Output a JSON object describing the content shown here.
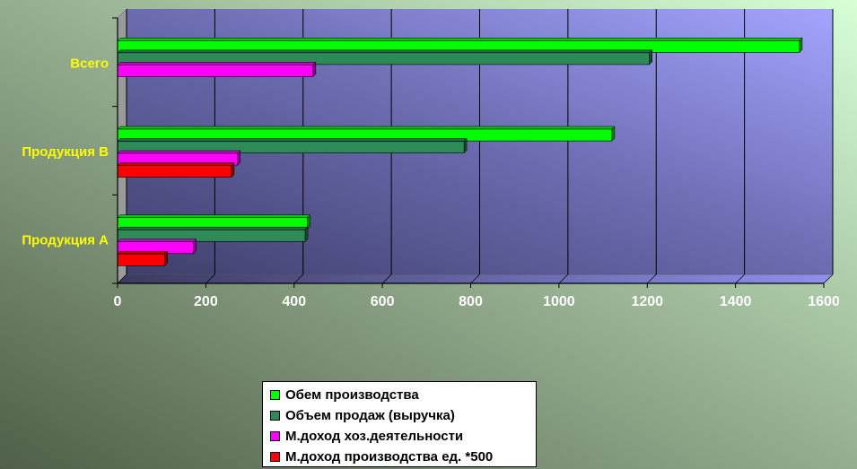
{
  "chart_data": {
    "type": "bar",
    "orientation": "horizontal",
    "style": "3d",
    "categories": [
      "Продукция А",
      "Продукция В",
      "Всего"
    ],
    "series": [
      {
        "name": "Обем производства",
        "values": [
          430,
          1120,
          1545
        ],
        "color": "#00ff00"
      },
      {
        "name": "Объем продаж (выручка)",
        "values": [
          425,
          785,
          1205
        ],
        "color": "#2e8b57"
      },
      {
        "name": "М.доход хоз.деятельности",
        "values": [
          172,
          272,
          443
        ],
        "color": "#ff00ff"
      },
      {
        "name": "М.доход производства ед. *500",
        "values": [
          107,
          258,
          null
        ],
        "color": "#ff0000"
      }
    ],
    "xlim": [
      0,
      1600
    ],
    "xticks": [
      "0",
      "200",
      "400",
      "600",
      "800",
      "1000",
      "1200",
      "1400",
      "1600"
    ],
    "grid": true,
    "legend_position": "bottom",
    "title": "",
    "xlabel": "",
    "ylabel": ""
  },
  "colors": {
    "category_label": "#ffff00",
    "tick_label": "#ffffff",
    "plot_wall_start": "#4a4a7a",
    "plot_wall_end": "#a0a0ff"
  }
}
